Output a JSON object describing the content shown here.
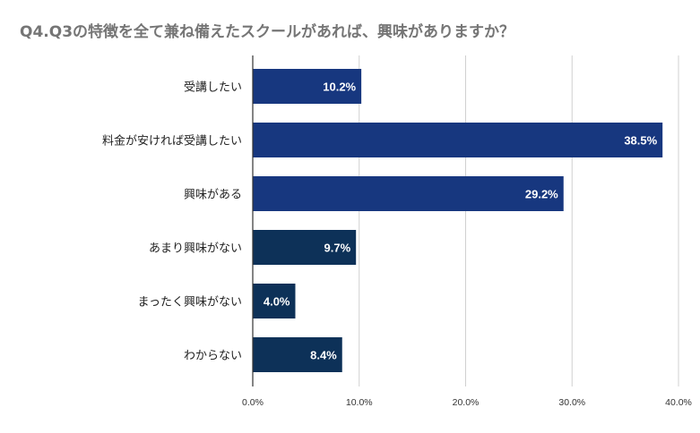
{
  "chart_data": {
    "type": "bar",
    "orientation": "horizontal",
    "title": "Q4.Q3の特徴を全て兼ね備えたスクールがあれば、興味がありますか？",
    "categories": [
      "受講したい",
      "料金が安ければ受講したい",
      "興味がある",
      "あまり興味がない",
      "まったく興味がない",
      "わからない"
    ],
    "values": [
      10.2,
      38.5,
      29.2,
      9.7,
      4.0,
      8.4
    ],
    "value_labels": [
      "10.2%",
      "38.5%",
      "29.2%",
      "9.7%",
      "4.0%",
      "8.4%"
    ],
    "bar_colors": [
      "#17377f",
      "#17377f",
      "#17377f",
      "#0d3158",
      "#0d3158",
      "#0d3158"
    ],
    "xlim": [
      0,
      40
    ],
    "x_ticks": [
      0,
      10,
      20,
      30,
      40
    ],
    "x_tick_labels": [
      "0.0%",
      "10.0%",
      "20.0%",
      "30.0%",
      "40.0%"
    ],
    "xlabel": "",
    "ylabel": "",
    "grid": true,
    "legend": "none"
  }
}
